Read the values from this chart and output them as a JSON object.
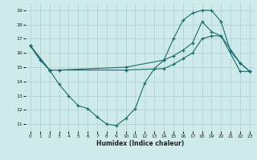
{
  "xlabel": "Humidex (Indice chaleur)",
  "background_color": "#ceeaea",
  "grid_color": "#aed0d0",
  "line_color": "#1a6b6b",
  "xlim": [
    -0.5,
    23.5
  ],
  "ylim": [
    10.5,
    19.5
  ],
  "yticks": [
    11,
    12,
    13,
    14,
    15,
    16,
    17,
    18,
    19
  ],
  "xticks": [
    0,
    1,
    2,
    3,
    4,
    5,
    6,
    7,
    8,
    9,
    10,
    11,
    12,
    13,
    14,
    15,
    16,
    17,
    18,
    19,
    20,
    21,
    22,
    23
  ],
  "series": [
    {
      "x": [
        0,
        1,
        2,
        3,
        4,
        5,
        6,
        7,
        8,
        9,
        10,
        11,
        12,
        13,
        14,
        15,
        16,
        17,
        18,
        19,
        20,
        21,
        22,
        23
      ],
      "y": [
        16.5,
        15.5,
        14.8,
        13.8,
        13.0,
        12.3,
        12.1,
        11.5,
        11.0,
        10.9,
        11.4,
        12.1,
        13.9,
        14.9,
        15.5,
        17.0,
        18.3,
        18.8,
        19.0,
        19.0,
        18.2,
        16.1,
        15.3,
        14.7
      ]
    },
    {
      "x": [
        0,
        2,
        3,
        10,
        14,
        15,
        16,
        17,
        18,
        19,
        20,
        22,
        23
      ],
      "y": [
        16.5,
        14.8,
        14.8,
        15.0,
        15.5,
        15.8,
        16.2,
        16.7,
        18.2,
        17.5,
        17.2,
        15.3,
        14.7
      ]
    },
    {
      "x": [
        0,
        2,
        3,
        10,
        14,
        15,
        16,
        17,
        18,
        19,
        20,
        22,
        23
      ],
      "y": [
        16.5,
        14.8,
        14.8,
        14.8,
        14.9,
        15.2,
        15.6,
        16.0,
        17.0,
        17.2,
        17.2,
        14.7,
        14.7
      ]
    }
  ]
}
